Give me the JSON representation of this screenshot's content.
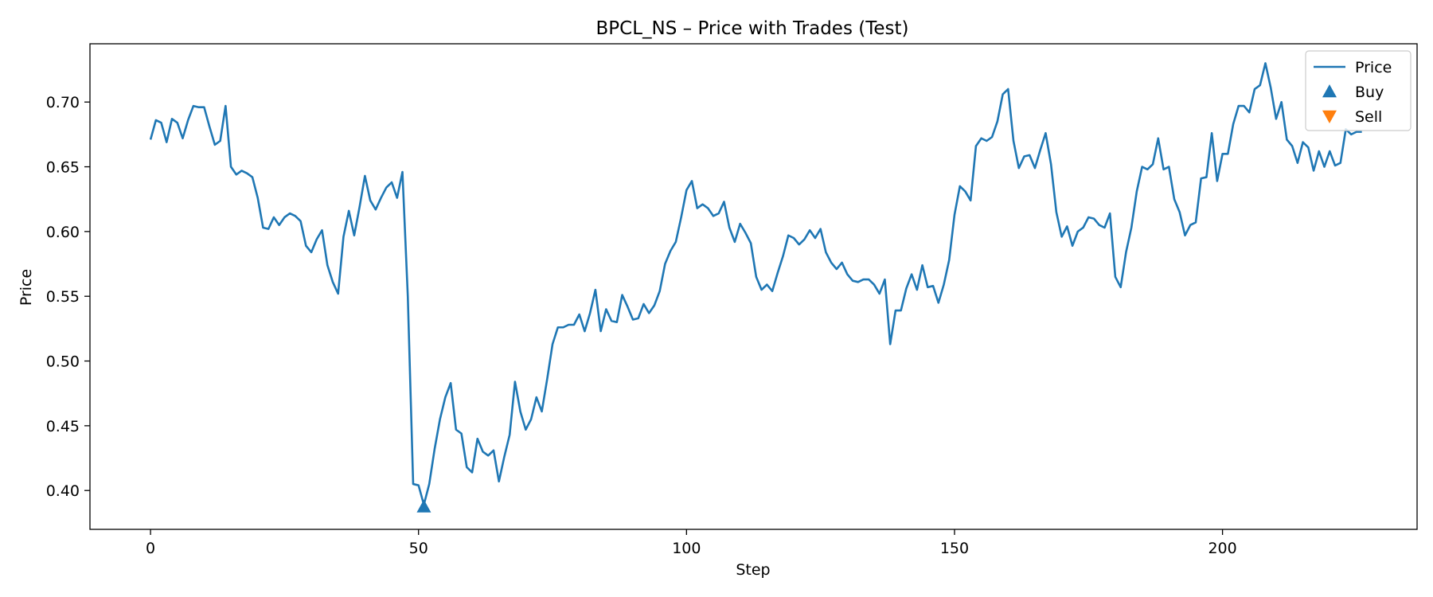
{
  "chart_data": {
    "type": "line",
    "title": "BPCL_NS – Price with Trades (Test)",
    "xlabel": "Step",
    "ylabel": "Price",
    "xlim": [
      -11.3,
      236.3
    ],
    "ylim": [
      0.37,
      0.745
    ],
    "xticks": [
      0,
      50,
      100,
      150,
      200
    ],
    "yticks": [
      0.4,
      0.45,
      0.5,
      0.55,
      0.6,
      0.65,
      0.7
    ],
    "ytick_labels": [
      "0.40",
      "0.45",
      "0.50",
      "0.55",
      "0.60",
      "0.65",
      "0.70"
    ],
    "legend_position": "top-right",
    "grid": false,
    "series": [
      {
        "name": "Price",
        "kind": "line",
        "color": "#1f77b4",
        "x_start": 0,
        "values": [
          0.671,
          0.686,
          0.684,
          0.669,
          0.687,
          0.684,
          0.672,
          0.686,
          0.697,
          0.696,
          0.696,
          0.681,
          0.667,
          0.67,
          0.697,
          0.65,
          0.644,
          0.647,
          0.645,
          0.642,
          0.626,
          0.603,
          0.602,
          0.611,
          0.605,
          0.611,
          0.614,
          0.612,
          0.608,
          0.589,
          0.584,
          0.594,
          0.601,
          0.574,
          0.561,
          0.552,
          0.596,
          0.616,
          0.597,
          0.619,
          0.643,
          0.624,
          0.617,
          0.626,
          0.634,
          0.638,
          0.626,
          0.646,
          0.55,
          0.405,
          0.404,
          0.389,
          0.405,
          0.432,
          0.455,
          0.472,
          0.483,
          0.447,
          0.444,
          0.418,
          0.414,
          0.44,
          0.43,
          0.427,
          0.431,
          0.407,
          0.426,
          0.443,
          0.484,
          0.461,
          0.447,
          0.455,
          0.472,
          0.461,
          0.486,
          0.513,
          0.526,
          0.526,
          0.528,
          0.528,
          0.536,
          0.523,
          0.537,
          0.555,
          0.523,
          0.54,
          0.531,
          0.53,
          0.551,
          0.542,
          0.532,
          0.533,
          0.544,
          0.537,
          0.543,
          0.554,
          0.575,
          0.585,
          0.592,
          0.611,
          0.632,
          0.639,
          0.618,
          0.621,
          0.618,
          0.612,
          0.614,
          0.623,
          0.603,
          0.592,
          0.606,
          0.599,
          0.591,
          0.565,
          0.555,
          0.559,
          0.554,
          0.568,
          0.581,
          0.597,
          0.595,
          0.59,
          0.594,
          0.601,
          0.595,
          0.602,
          0.584,
          0.576,
          0.571,
          0.576,
          0.567,
          0.562,
          0.561,
          0.563,
          0.563,
          0.559,
          0.552,
          0.563,
          0.513,
          0.539,
          0.539,
          0.556,
          0.567,
          0.555,
          0.574,
          0.557,
          0.558,
          0.545,
          0.559,
          0.578,
          0.613,
          0.635,
          0.631,
          0.624,
          0.666,
          0.672,
          0.67,
          0.673,
          0.685,
          0.706,
          0.71,
          0.67,
          0.649,
          0.658,
          0.659,
          0.649,
          0.663,
          0.676,
          0.652,
          0.615,
          0.596,
          0.604,
          0.589,
          0.6,
          0.603,
          0.611,
          0.61,
          0.605,
          0.603,
          0.614,
          0.565,
          0.557,
          0.584,
          0.603,
          0.631,
          0.65,
          0.648,
          0.652,
          0.672,
          0.648,
          0.65,
          0.625,
          0.615,
          0.597,
          0.605,
          0.607,
          0.641,
          0.642,
          0.676,
          0.639,
          0.66,
          0.66,
          0.683,
          0.697,
          0.697,
          0.692,
          0.71,
          0.713,
          0.73,
          0.711,
          0.687,
          0.7,
          0.671,
          0.666,
          0.653,
          0.669,
          0.665,
          0.647,
          0.662,
          0.65,
          0.662,
          0.651,
          0.653,
          0.679,
          0.675,
          0.677,
          0.677
        ]
      },
      {
        "name": "Buy",
        "kind": "marker",
        "marker": "triangle-up",
        "color": "#1f77b4",
        "points": [
          {
            "x": 51,
            "y": 0.3875
          }
        ]
      },
      {
        "name": "Sell",
        "kind": "marker",
        "marker": "triangle-down",
        "color": "#ff7f0e",
        "points": []
      }
    ]
  }
}
